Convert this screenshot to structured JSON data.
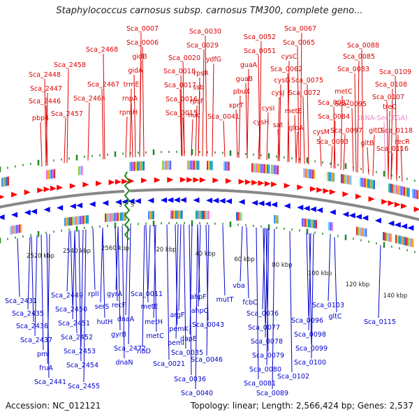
{
  "title": "Staphylococcus carnosus subsp. carnosus TM300, complete geno...",
  "accession": "Accession: NC_012121",
  "topology": "Topology: linear; Length: 2,566,424 bp; Genes: 2,537",
  "strand_start": "3'",
  "strand_end": "5'",
  "colors": {
    "top_label": "#dd0000",
    "bottom_label": "#0000cc",
    "rna_label": "#ee88cc",
    "forward_arrow": "#ff0000",
    "reverse_arrow": "#0000ee",
    "backbone": "#888888",
    "tick": "#228822",
    "break": "#228822"
  },
  "top_labels": [
    {
      "name": "Sca_0007"
    },
    {
      "name": "Sca_0006"
    },
    {
      "name": "gidB"
    },
    {
      "name": "gidA"
    },
    {
      "name": "trmE"
    },
    {
      "name": "rnpA"
    },
    {
      "name": "rpmH"
    },
    {
      "name": "Sca_0030"
    },
    {
      "name": "Sca_0029"
    },
    {
      "name": "Sca_0020"
    },
    {
      "name": "ydfG"
    },
    {
      "name": "Sca_0018"
    },
    {
      "name": "rpsR"
    },
    {
      "name": "Sca_0017"
    },
    {
      "name": "ssb"
    },
    {
      "name": "Sca_0016"
    },
    {
      "name": "rpsF"
    },
    {
      "name": "Sca_0015"
    },
    {
      "name": "nuc"
    },
    {
      "name": "Sca_0041"
    },
    {
      "name": "Sca_0052"
    },
    {
      "name": "Sca_0051"
    },
    {
      "name": "guaA"
    },
    {
      "name": "guaB"
    },
    {
      "name": "pbuX"
    },
    {
      "name": "xprT"
    },
    {
      "name": "Sca_0067"
    },
    {
      "name": "Sca_0065"
    },
    {
      "name": "cysC"
    },
    {
      "name": "Sca_0062"
    },
    {
      "name": "cysG"
    },
    {
      "name": "Sca_0075"
    },
    {
      "name": "cysJ"
    },
    {
      "name": "Sca_0072"
    },
    {
      "name": "cysI"
    },
    {
      "name": "metE"
    },
    {
      "name": "cysH"
    },
    {
      "name": "sat"
    },
    {
      "name": "gloA"
    },
    {
      "name": "Sca_0088"
    },
    {
      "name": "Sca_0085"
    },
    {
      "name": "Sca_0083"
    },
    {
      "name": "metC"
    },
    {
      "name": "Sca_0082"
    },
    {
      "name": "Sca_0084"
    },
    {
      "name": "cysM"
    },
    {
      "name": "Sca_0093"
    },
    {
      "name": "Sca_0095"
    },
    {
      "name": "Sca_0097"
    },
    {
      "name": "Sca_0109"
    },
    {
      "name": "Sca_0108"
    },
    {
      "name": "Sca_0107"
    },
    {
      "name": "treC"
    },
    {
      "name": "tRNA-Sec(TGA)",
      "rna": true
    },
    {
      "name": "gltD"
    },
    {
      "name": "gltB"
    },
    {
      "name": "Sca_0118"
    },
    {
      "name": "recR"
    },
    {
      "name": "Sca_0116"
    },
    {
      "name": "Sca_2468"
    },
    {
      "name": "Sca_2458"
    },
    {
      "name": "Sca_2448"
    },
    {
      "name": "Sca_2447"
    },
    {
      "name": "Sca_2467"
    },
    {
      "name": "Sca_2464"
    },
    {
      "name": "Sca_2446"
    },
    {
      "name": "Sca_2457"
    },
    {
      "name": "pbp4"
    }
  ],
  "bottom_labels": [
    {
      "name": "Sca_2431"
    },
    {
      "name": "Sca_2435"
    },
    {
      "name": "Sca_2436"
    },
    {
      "name": "Sca_2437"
    },
    {
      "name": "pmi"
    },
    {
      "name": "fruA"
    },
    {
      "name": "Sca_2441"
    },
    {
      "name": "Sca_2449"
    },
    {
      "name": "Sca_2450"
    },
    {
      "name": "Sca_2451"
    },
    {
      "name": "Sca_2452"
    },
    {
      "name": "Sca_2453"
    },
    {
      "name": "Sca_2454"
    },
    {
      "name": "Sca_2455"
    },
    {
      "name": "rplI"
    },
    {
      "name": "serS"
    },
    {
      "name": "hutH"
    },
    {
      "name": "gyrA"
    },
    {
      "name": "recF"
    },
    {
      "name": "dnaA"
    },
    {
      "name": "gyrB"
    },
    {
      "name": "Sca_2472"
    },
    {
      "name": "dnaN"
    },
    {
      "name": "Sca_0011"
    },
    {
      "name": "metE"
    },
    {
      "name": "metH"
    },
    {
      "name": "metC"
    },
    {
      "name": "ribD"
    },
    {
      "name": "Sca_0021"
    },
    {
      "name": "argF"
    },
    {
      "name": "pemK"
    },
    {
      "name": "pemI"
    },
    {
      "name": "ahpF"
    },
    {
      "name": "ahpC"
    },
    {
      "name": "Sca_0043"
    },
    {
      "name": "dapE"
    },
    {
      "name": "Sca_0035"
    },
    {
      "name": "Sca_0046"
    },
    {
      "name": "Sca_0036"
    },
    {
      "name": "Sca_0040"
    },
    {
      "name": "mutT"
    },
    {
      "name": "vba"
    },
    {
      "name": "fcbC"
    },
    {
      "name": "Sca_0076"
    },
    {
      "name": "Sca_0077"
    },
    {
      "name": "Sca_0078"
    },
    {
      "name": "Sca_0079"
    },
    {
      "name": "Sca_0080"
    },
    {
      "name": "Sca_0081"
    },
    {
      "name": "Sca_0089"
    },
    {
      "name": "Sca_0096"
    },
    {
      "name": "Sca_0098"
    },
    {
      "name": "Sca_0099"
    },
    {
      "name": "Sca_0100"
    },
    {
      "name": "Sca_0102"
    },
    {
      "name": "Sca_0103"
    },
    {
      "name": "gltC"
    },
    {
      "name": "Sca_0115"
    }
  ],
  "kbp_ticks": [
    "2520 kbp",
    "2540 kbp",
    "2560 kbp",
    "20 kbp",
    "40 kbp",
    "60 kbp",
    "80 kbp",
    "100 kbp",
    "120 kbp",
    "140 kbp"
  ]
}
